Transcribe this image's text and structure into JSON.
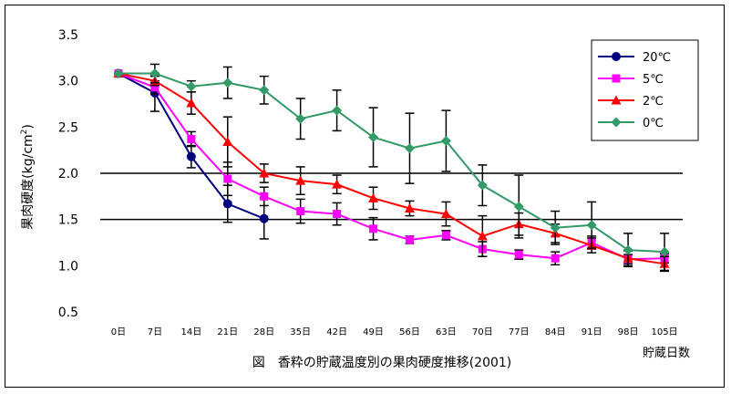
{
  "chart_data": {
    "type": "line",
    "title": "",
    "caption": "図　香粋の貯蔵温度別の果肉硬度推移(2001)",
    "xlabel": "貯蔵日数",
    "ylabel": "果肉硬度(kg/cm²)",
    "ylabel_parts": {
      "main": "果肉硬度(kg/cm",
      "sup": "2",
      "close": ")"
    },
    "x_categories": [
      "0日",
      "7日",
      "14日",
      "21日",
      "28日",
      "35日",
      "42日",
      "49日",
      "56日",
      "63日",
      "70日",
      "77日",
      "84日",
      "91日",
      "98日",
      "105日"
    ],
    "x_days": [
      0,
      7,
      14,
      21,
      28,
      35,
      42,
      49,
      56,
      63,
      70,
      77,
      84,
      91,
      98,
      105
    ],
    "ylim": [
      0.5,
      3.5
    ],
    "yticks": [
      "0.5",
      "1.0",
      "1.5",
      "2.0",
      "2.5",
      "3.0",
      "3.5"
    ],
    "reference_lines": [
      2.0,
      1.5
    ],
    "grid": false,
    "legend_position": "top-right",
    "series": [
      {
        "name": "20℃",
        "color": "#000080",
        "marker": "circle",
        "values": [
          3.08,
          2.87,
          2.18,
          1.67,
          1.51
        ],
        "err": [
          0.0,
          0.2,
          0.12,
          0.2,
          0.22
        ]
      },
      {
        "name": "5℃",
        "color": "#ff00ff",
        "marker": "square",
        "values": [
          3.08,
          2.93,
          2.37,
          1.94,
          1.75,
          1.59,
          1.56,
          1.4,
          1.28,
          1.33,
          1.18,
          1.12,
          1.08,
          1.25,
          1.07,
          1.08
        ],
        "err": [
          0.0,
          0.07,
          0.08,
          0.18,
          0.1,
          0.13,
          0.12,
          0.12,
          0.04,
          0.05,
          0.08,
          0.05,
          0.07,
          0.07,
          0.05,
          0.05
        ]
      },
      {
        "name": "2℃",
        "color": "#ff0000",
        "marker": "triangle",
        "values": [
          3.08,
          3.0,
          2.76,
          2.34,
          2.0,
          1.92,
          1.88,
          1.73,
          1.62,
          1.56,
          1.32,
          1.45,
          1.35,
          1.22,
          1.08,
          1.02
        ],
        "err": [
          0.0,
          0.05,
          0.12,
          0.27,
          0.1,
          0.15,
          0.1,
          0.12,
          0.08,
          0.13,
          0.22,
          0.12,
          0.1,
          0.08,
          0.08,
          0.08
        ]
      },
      {
        "name": "0℃",
        "color": "#339966",
        "marker": "diamond",
        "values": [
          3.08,
          3.08,
          2.94,
          2.98,
          2.9,
          2.59,
          2.68,
          2.39,
          2.27,
          2.35,
          1.87,
          1.64,
          1.41,
          1.44,
          1.17,
          1.15
        ],
        "err": [
          0.0,
          0.1,
          0.06,
          0.17,
          0.15,
          0.22,
          0.22,
          0.32,
          0.38,
          0.33,
          0.22,
          0.34,
          0.18,
          0.25,
          0.18,
          0.2
        ]
      }
    ]
  }
}
